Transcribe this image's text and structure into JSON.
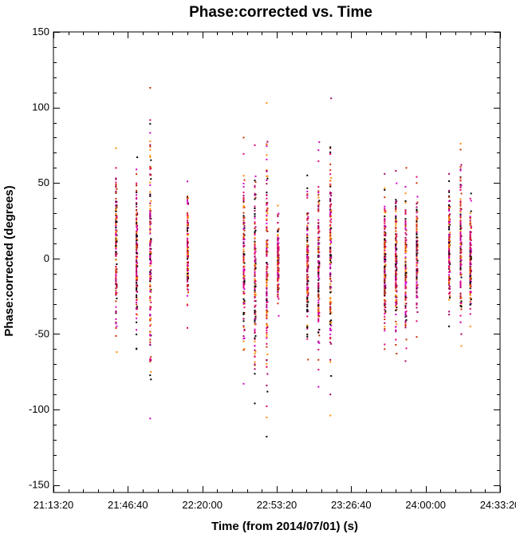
{
  "chart_data": {
    "type": "scatter",
    "title": "Phase:corrected vs. Time",
    "xlabel": "Time (from 2014/07/01) (s)",
    "ylabel": "Phase:corrected (degrees)",
    "xlim": [
      "21:13:20",
      "24:33:20"
    ],
    "ylim": [
      -155,
      150
    ],
    "x_ticks": [
      "21:13:20",
      "21:46:40",
      "22:20:00",
      "22:53:20",
      "23:26:40",
      "24:00:00",
      "24:33:20"
    ],
    "y_ticks": [
      -150,
      -100,
      -50,
      0,
      50,
      100,
      150
    ],
    "grid": false,
    "legend": "none",
    "marker_colors": [
      "#000000",
      "#e0006e",
      "#a00060",
      "#ff8c00",
      "#c83200",
      "#d000c0"
    ],
    "scans": [
      {
        "time": "21:41:20",
        "phase_min": -62,
        "phase_max": 73
      },
      {
        "time": "21:50:30",
        "phase_min": -60,
        "phase_max": 67
      },
      {
        "time": "21:56:40",
        "phase_min": -106,
        "phase_max": 113
      },
      {
        "time": "22:13:20",
        "phase_min": -46,
        "phase_max": 51
      },
      {
        "time": "22:38:30",
        "phase_min": -83,
        "phase_max": 80
      },
      {
        "time": "22:43:30",
        "phase_min": -96,
        "phase_max": 75
      },
      {
        "time": "22:48:50",
        "phase_min": -118,
        "phase_max": 103
      },
      {
        "time": "22:53:50",
        "phase_min": -38,
        "phase_max": 35
      },
      {
        "time": "23:07:00",
        "phase_min": -67,
        "phase_max": 55
      },
      {
        "time": "23:12:00",
        "phase_min": -85,
        "phase_max": 77
      },
      {
        "time": "23:17:20",
        "phase_min": -104,
        "phase_max": 106
      },
      {
        "time": "23:41:40",
        "phase_min": -60,
        "phase_max": 56
      },
      {
        "time": "23:46:40",
        "phase_min": -63,
        "phase_max": 58
      },
      {
        "time": "23:51:00",
        "phase_min": -68,
        "phase_max": 60
      },
      {
        "time": "23:56:00",
        "phase_min": -52,
        "phase_max": 54
      },
      {
        "time": "24:10:30",
        "phase_min": -45,
        "phase_max": 56
      },
      {
        "time": "24:15:40",
        "phase_min": -58,
        "phase_max": 76
      },
      {
        "time": "24:20:00",
        "phase_min": -45,
        "phase_max": 43
      }
    ]
  }
}
